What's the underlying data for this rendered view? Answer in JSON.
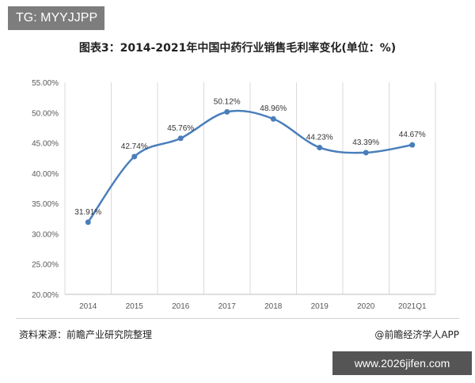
{
  "watermark": {
    "tg_label": "TG: MYYJJPP",
    "site": "www.2026jifen.com"
  },
  "chart_data": {
    "type": "line",
    "title": "图表3：2014-2021年中国中药行业销售毛利率变化(单位：%)",
    "categories": [
      "2014",
      "2015",
      "2016",
      "2017",
      "2018",
      "2019",
      "2020",
      "2021Q1"
    ],
    "series": [
      {
        "values": [
          31.91,
          42.74,
          45.76,
          50.12,
          48.96,
          44.23,
          43.39,
          44.67
        ],
        "labels": [
          "31.91%",
          "42.74%",
          "45.76%",
          "50.12%",
          "48.96%",
          "44.23%",
          "43.39%",
          "44.67%"
        ]
      }
    ],
    "y_ticks": [
      "20.00%",
      "25.00%",
      "30.00%",
      "35.00%",
      "40.00%",
      "45.00%",
      "50.00%",
      "55.00%"
    ],
    "ylim": [
      20,
      55
    ],
    "grid": "vertical",
    "line_color": "#4a7ebb"
  },
  "footer": {
    "source": "资料来源：前瞻产业研究院整理",
    "brand": "@前瞻经济学人APP"
  }
}
